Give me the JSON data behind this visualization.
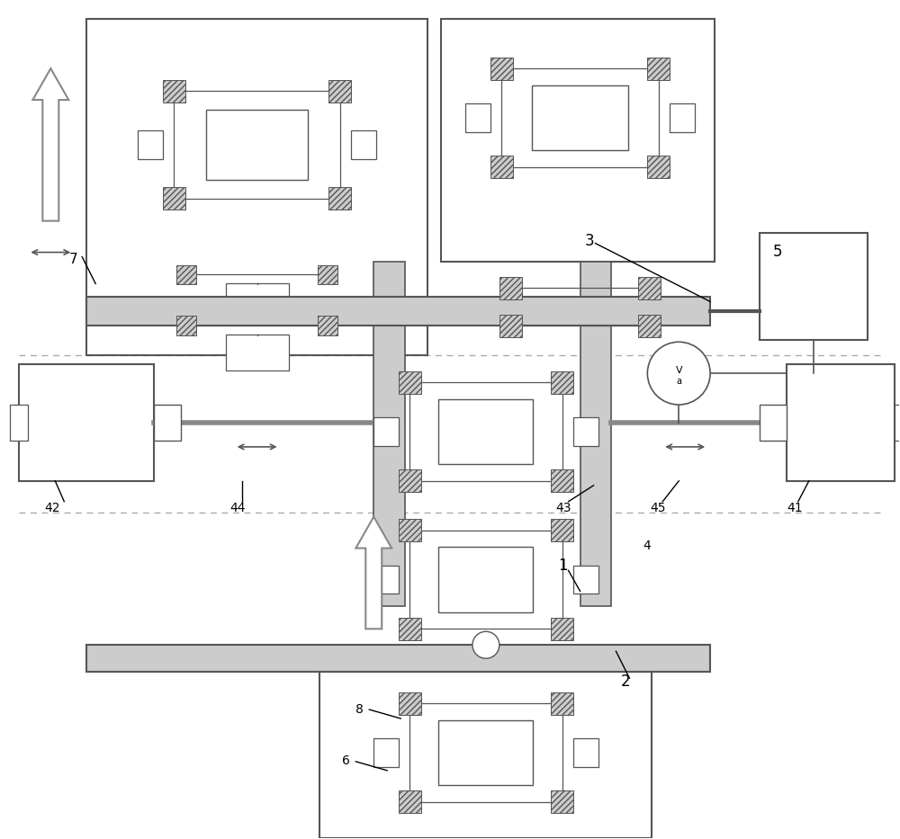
{
  "fig_width": 10.0,
  "fig_height": 9.33,
  "dpi": 100,
  "lc": "#444444",
  "bar_fill": "#d0d0d0",
  "corner_fill": "#c0c0c0",
  "frame_fill": "white"
}
